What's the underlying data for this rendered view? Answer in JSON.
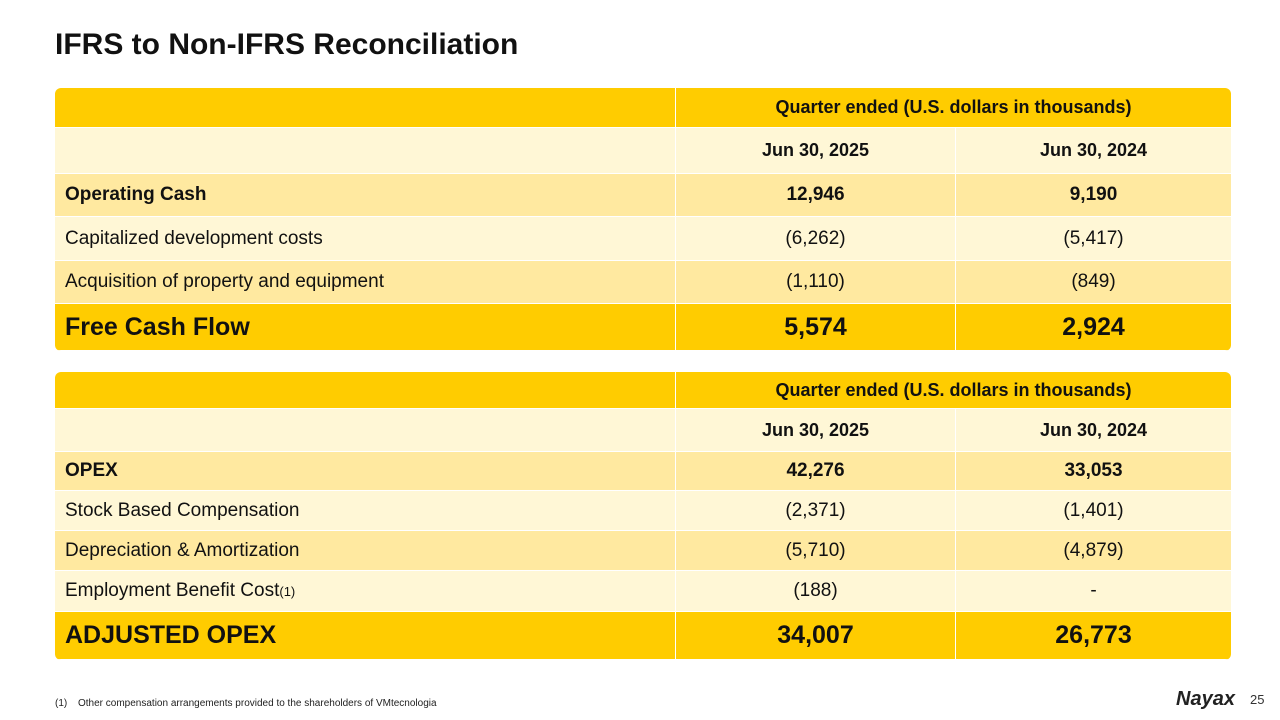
{
  "header": {
    "title": "IFRS to Non-IFRS Reconciliation"
  },
  "tables": [
    {
      "group_header": "Quarter ended (U.S. dollars in thousands)",
      "columns": [
        "Jun 30, 2025",
        "Jun 30, 2024"
      ],
      "rows": [
        {
          "label": "Operating Cash",
          "values": [
            "12,946",
            "9,190"
          ]
        },
        {
          "label": "Capitalized development costs",
          "values": [
            "(6,262)",
            "(5,417)"
          ]
        },
        {
          "label": "Acquisition of property and equipment",
          "values": [
            "(1,110)",
            "(849)"
          ]
        }
      ],
      "total": {
        "label": "Free Cash Flow",
        "values": [
          "5,574",
          "2,924"
        ]
      }
    },
    {
      "group_header": "Quarter ended (U.S. dollars in thousands)",
      "columns": [
        "Jun 30, 2025",
        "Jun 30, 2024"
      ],
      "rows": [
        {
          "label": "OPEX",
          "values": [
            "42,276",
            "33,053"
          ]
        },
        {
          "label": "Stock Based Compensation",
          "values": [
            "(2,371)",
            "(1,401)"
          ]
        },
        {
          "label": "Depreciation & Amortization",
          "values": [
            "(5,710)",
            "(4,879)"
          ]
        },
        {
          "label": "Employment Benefit Cost",
          "note": "(1)",
          "values": [
            "(188)",
            "-"
          ]
        }
      ],
      "total": {
        "label": "ADJUSTED OPEX",
        "values": [
          "34,007",
          "26,773"
        ]
      }
    }
  ],
  "footnote": {
    "marker": "(1)",
    "text": "Other compensation arrangements provided to the shareholders of VMtecnologia"
  },
  "footer": {
    "logo": "Nayax",
    "page": "25"
  }
}
